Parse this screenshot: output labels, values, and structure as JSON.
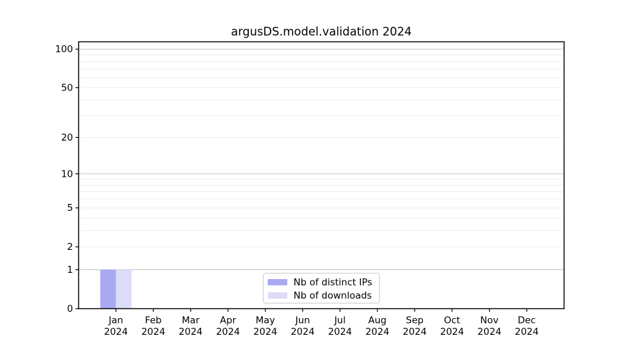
{
  "chart_data": {
    "type": "bar",
    "title": "argusDS.model.validation 2024",
    "xlabel": "",
    "ylabel": "",
    "yscale": "log1p",
    "grid": true,
    "legend_position": "lower center",
    "categories": [
      {
        "month": "Jan",
        "year": "2024"
      },
      {
        "month": "Feb",
        "year": "2024"
      },
      {
        "month": "Mar",
        "year": "2024"
      },
      {
        "month": "Apr",
        "year": "2024"
      },
      {
        "month": "May",
        "year": "2024"
      },
      {
        "month": "Jun",
        "year": "2024"
      },
      {
        "month": "Jul",
        "year": "2024"
      },
      {
        "month": "Aug",
        "year": "2024"
      },
      {
        "month": "Sep",
        "year": "2024"
      },
      {
        "month": "Oct",
        "year": "2024"
      },
      {
        "month": "Nov",
        "year": "2024"
      },
      {
        "month": "Dec",
        "year": "2024"
      }
    ],
    "series": [
      {
        "name": "Nb of distinct IPs",
        "color": "#a9a9f2",
        "values": [
          1,
          0,
          0,
          0,
          0,
          0,
          0,
          0,
          0,
          0,
          0,
          0
        ]
      },
      {
        "name": "Nb of downloads",
        "color": "#dcdcf8",
        "values": [
          1,
          0,
          0,
          0,
          0,
          0,
          0,
          0,
          0,
          0,
          0,
          0
        ]
      }
    ],
    "yticks": [
      {
        "value": 0,
        "label": "0"
      },
      {
        "value": 1,
        "label": "1"
      },
      {
        "value": 2,
        "label": "2"
      },
      {
        "value": 5,
        "label": "5"
      },
      {
        "value": 10,
        "label": "10"
      },
      {
        "value": 20,
        "label": "20"
      },
      {
        "value": 50,
        "label": "50"
      },
      {
        "value": 100,
        "label": "100"
      }
    ],
    "major_gridlines": [
      1,
      10,
      100
    ],
    "minor_gridlines": [
      2,
      3,
      4,
      5,
      6,
      7,
      8,
      9,
      20,
      30,
      40,
      50,
      60,
      70,
      80,
      90
    ],
    "colors": {
      "major_grid": "#c6c6c6",
      "minor_grid": "#ededed",
      "axis": "#000000",
      "text": "#000000",
      "legend_border": "#cccccc",
      "background": "#ffffff"
    }
  }
}
